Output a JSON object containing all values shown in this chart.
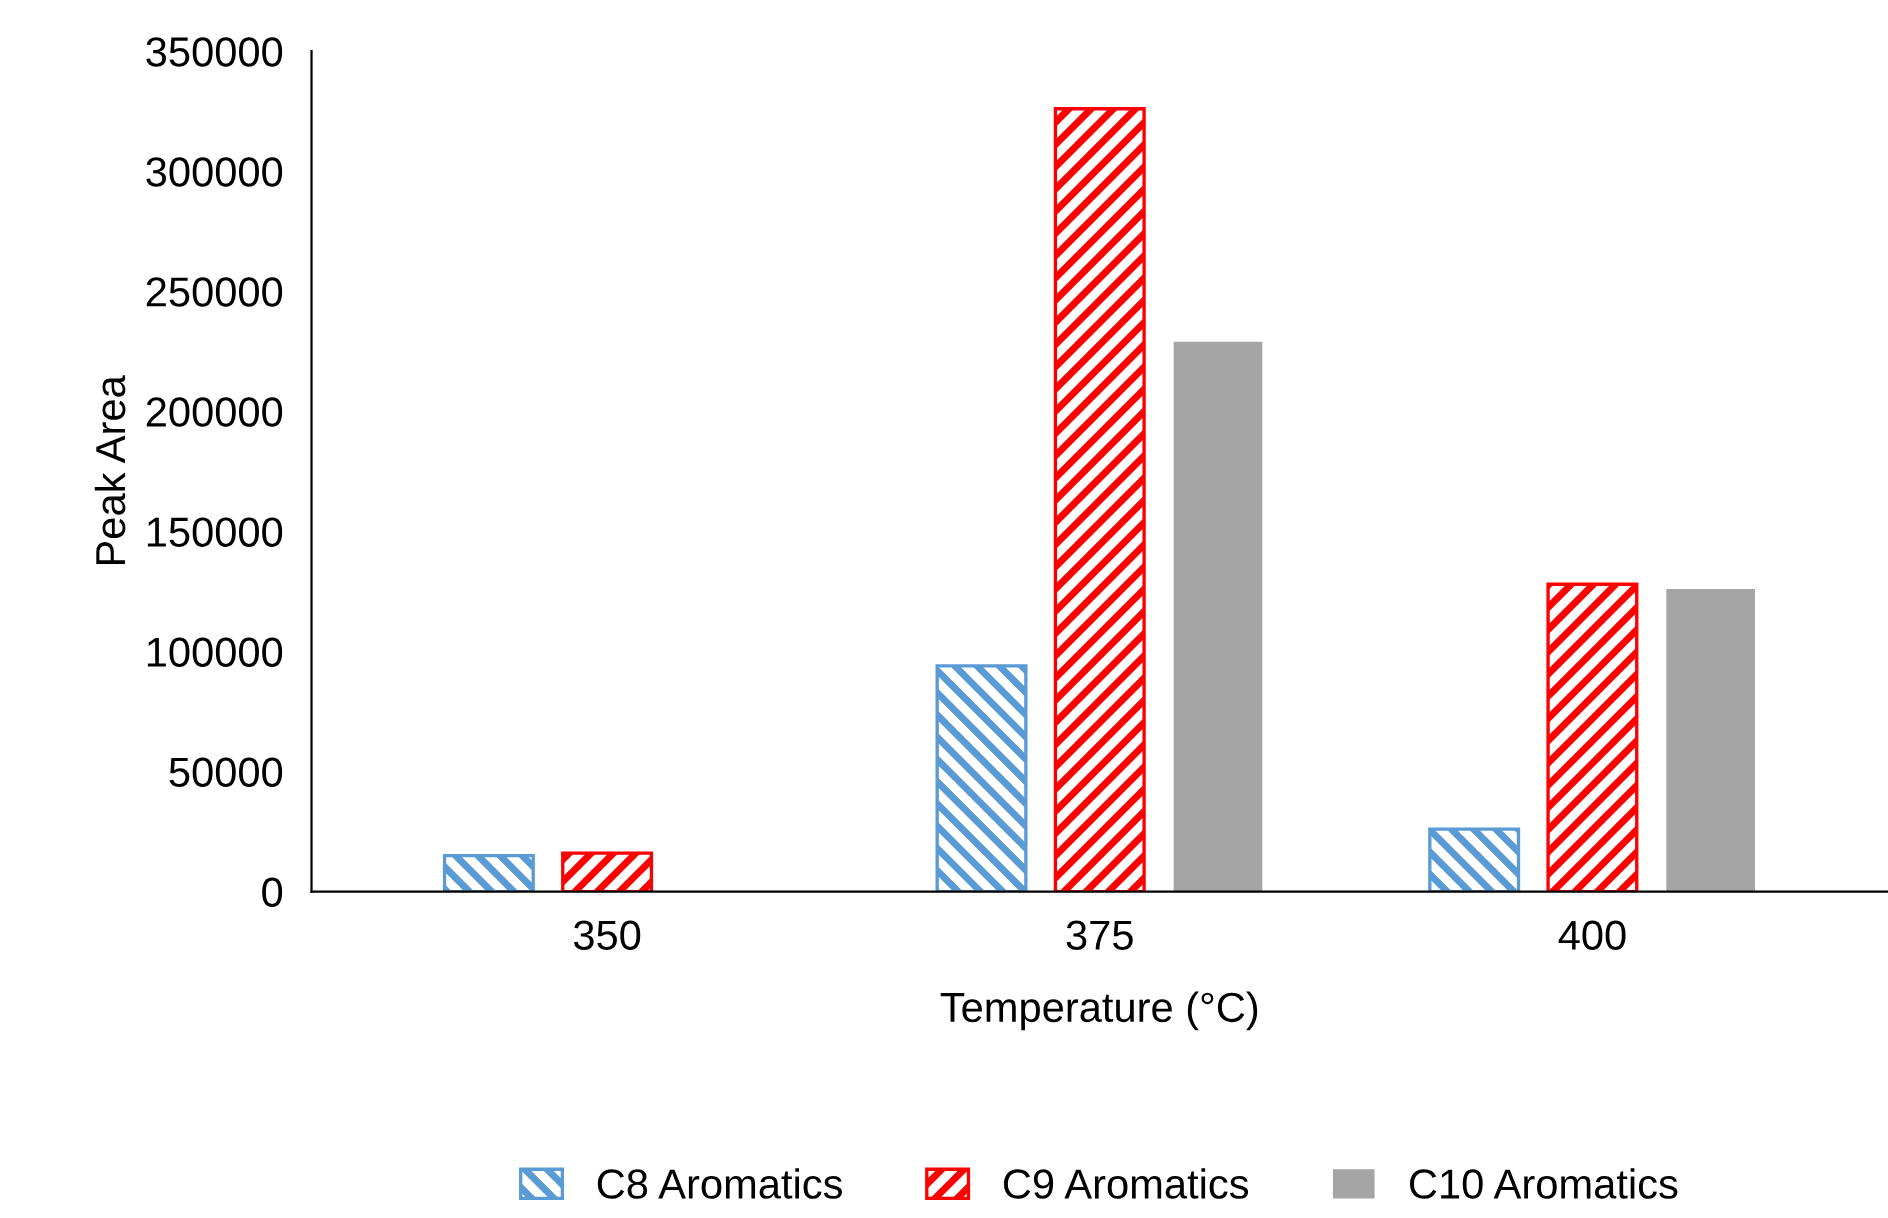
{
  "chart_data": {
    "type": "bar",
    "xlabel": "Temperature (°C)",
    "ylabel": "Peak Area",
    "categories": [
      "350",
      "375",
      "400"
    ],
    "series": [
      {
        "name": "C8 Aromatics",
        "color": "#5b9bd5",
        "values": [
          15000,
          94000,
          26000
        ]
      },
      {
        "name": "C9 Aromatics",
        "color": "#ff0000",
        "values": [
          16000,
          326000,
          128000
        ]
      },
      {
        "name": "C10 Aromatics",
        "color": "#a5a5a5",
        "values": [
          0,
          229000,
          126000
        ]
      }
    ],
    "ylim": [
      0,
      350000
    ],
    "yticks": [
      0,
      50000,
      100000,
      150000,
      200000,
      250000,
      300000,
      350000
    ],
    "grid": false,
    "legend": "bottom"
  }
}
